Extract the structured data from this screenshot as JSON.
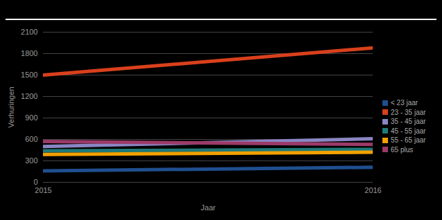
{
  "chart_data": {
    "type": "line",
    "x_label": "Jaar",
    "y_label": "Verhuringen",
    "x": [
      2015,
      2016
    ],
    "xlim": [
      2015,
      2016
    ],
    "xticks": [
      2015,
      2016
    ],
    "ylim": [
      0,
      2100
    ],
    "yticks": [
      0,
      300,
      600,
      900,
      1200,
      1500,
      1800,
      2100
    ],
    "grid": true,
    "legend": "right",
    "series": [
      {
        "name": "< 23 jaar",
        "color": "#1f4f8f",
        "values": [
          160,
          210
        ]
      },
      {
        "name": "23 - 35 jaar",
        "color": "#d9401c",
        "values": [
          1500,
          1880
        ]
      },
      {
        "name": "35 - 45 jaar",
        "color": "#8a86c4",
        "values": [
          500,
          610
        ]
      },
      {
        "name": "45 - 55 jaar",
        "color": "#1f7a78",
        "values": [
          440,
          460
        ]
      },
      {
        "name": "55 - 65 jaar",
        "color": "#f2a100",
        "values": [
          390,
          420
        ]
      },
      {
        "name": "65 plus",
        "color": "#9b3a68",
        "values": [
          570,
          530
        ]
      }
    ]
  }
}
